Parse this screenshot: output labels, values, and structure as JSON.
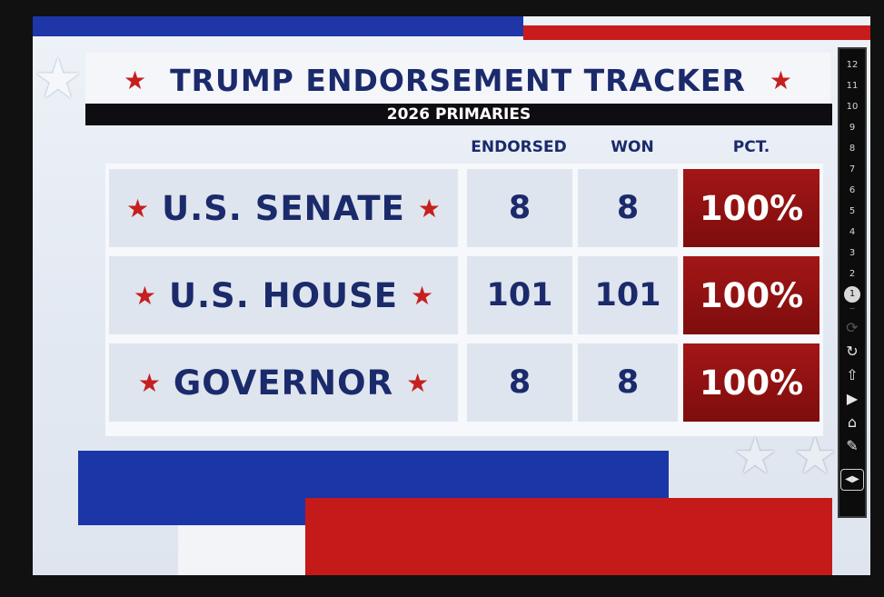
{
  "title": "TRUMP ENDORSEMENT TRACKER",
  "subtitle": "2026 PRIMARIES",
  "columns": {
    "endorsed": "ENDORSED",
    "won": "WON",
    "pct": "PCT."
  },
  "rows": [
    {
      "label": "U.S. SENATE",
      "endorsed": "8",
      "won": "8",
      "pct": "100%"
    },
    {
      "label": "U.S. HOUSE",
      "endorsed": "101",
      "won": "101",
      "pct": "100%"
    },
    {
      "label": "GOVERNOR",
      "endorsed": "8",
      "won": "8",
      "pct": "100%"
    }
  ],
  "sidebar": {
    "numbers": [
      "12",
      "11",
      "10",
      "9",
      "8",
      "7",
      "6",
      "5",
      "4",
      "3",
      "2"
    ],
    "selected": "1",
    "icons": [
      "refresh-icon",
      "up-arrow-icon",
      "play-icon",
      "home-icon",
      "pencil-icon",
      "toggle-icon"
    ]
  },
  "colors": {
    "navy": "#1b2a6b",
    "accent_red": "#c61f1f",
    "pct_red": "#9b1414",
    "stripe_blue": "#1b36a6"
  }
}
